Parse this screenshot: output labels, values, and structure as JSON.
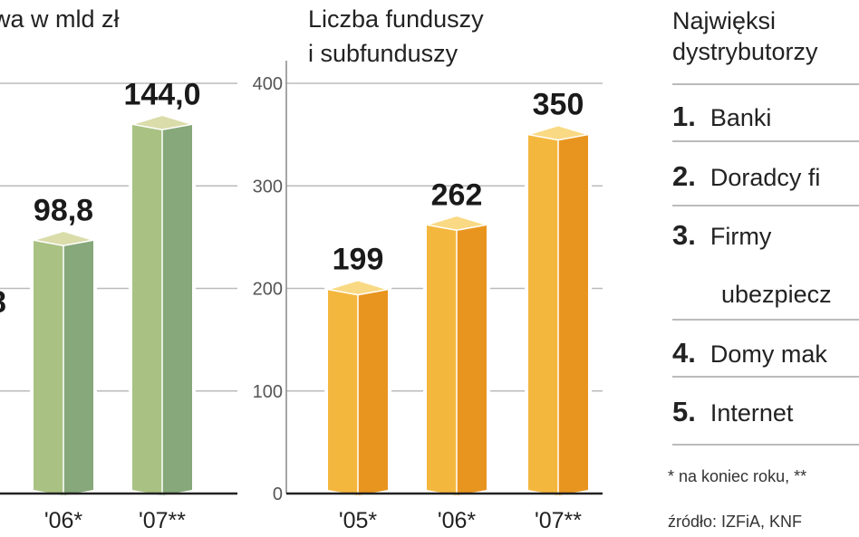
{
  "chart_data": [
    {
      "type": "bar",
      "title": "wa w mld zł",
      "categories": [
        "'06*",
        "'07**"
      ],
      "values": [
        98.8,
        144.0
      ],
      "value_labels": [
        "98,8",
        "144,0"
      ],
      "partial_label": "8",
      "ylim": [
        0,
        160
      ],
      "grid": true,
      "colors": {
        "front": "#a9c283",
        "side": "#87a87a",
        "top": "#dadcaa"
      }
    },
    {
      "type": "bar",
      "title": [
        "Liczba funduszy",
        "i subfunduszy"
      ],
      "categories": [
        "'05*",
        "'06*",
        "'07**"
      ],
      "values": [
        199,
        262,
        350
      ],
      "value_labels": [
        "199",
        "262",
        "350"
      ],
      "yticks": [
        "0",
        "100",
        "200",
        "300",
        "400"
      ],
      "ylim": [
        0,
        400
      ],
      "grid": true,
      "colors": {
        "front": "#f4b73e",
        "side": "#e8951f",
        "top": "#f9d983"
      }
    }
  ],
  "distributors": {
    "title": [
      "Najwięksi",
      "dystrybutorzy"
    ],
    "items": [
      {
        "n": "1.",
        "label": "Banki"
      },
      {
        "n": "2.",
        "label": "Doradcy fi"
      },
      {
        "n": "3.",
        "label": "Firmy",
        "label2": "ubezpiecz"
      },
      {
        "n": "4.",
        "label": "Domy mak"
      },
      {
        "n": "5.",
        "label": "Internet"
      }
    ]
  },
  "footnote": "* na koniec roku, **",
  "source": "źródło: IZFiA, KNF"
}
